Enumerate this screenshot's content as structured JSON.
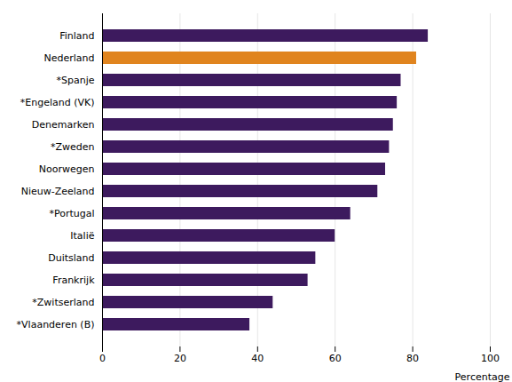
{
  "chart_data": {
    "type": "bar",
    "orientation": "horizontal",
    "categories": [
      "*Vlaanderen (B)",
      "*Zwitserland",
      "Frankrijk",
      "Duitsland",
      "Italië",
      "*Portugal",
      "Nieuw-Zeeland",
      "Noorwegen",
      "*Zweden",
      "Denemarken",
      "*Engeland (VK)",
      "*Spanje",
      "Nederland",
      "Finland"
    ],
    "values": [
      38,
      44,
      53,
      55,
      60,
      64,
      71,
      73,
      74,
      75,
      76,
      77,
      81,
      84
    ],
    "colors": [
      "#3d1a5e",
      "#3d1a5e",
      "#3d1a5e",
      "#3d1a5e",
      "#3d1a5e",
      "#3d1a5e",
      "#3d1a5e",
      "#3d1a5e",
      "#3d1a5e",
      "#3d1a5e",
      "#3d1a5e",
      "#3d1a5e",
      "#e0841e",
      "#3d1a5e"
    ],
    "xlim": [
      0,
      100
    ],
    "xticks": [
      0,
      20,
      40,
      60,
      80,
      100
    ],
    "xlabel": "Percentage",
    "grid": true
  }
}
